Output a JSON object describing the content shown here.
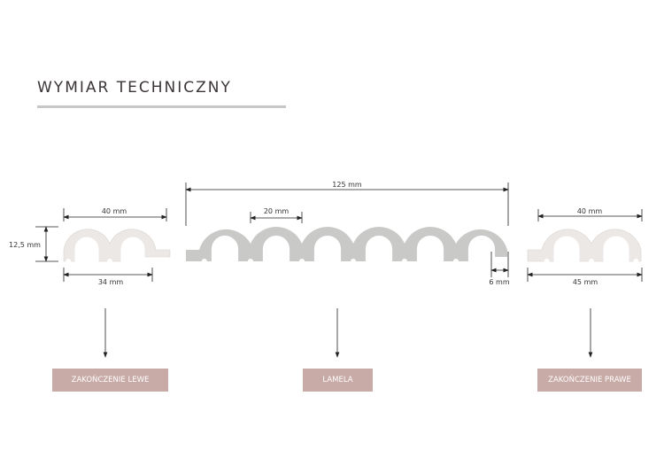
{
  "title": "WYMIAR TECHNICZNY",
  "dimensions": {
    "left_width_top": "40 mm",
    "left_height": "12,5 mm",
    "left_width_bottom": "34 mm",
    "lamela_total": "125 mm",
    "lamela_pitch": "20 mm",
    "lamela_offset": "6 mm",
    "right_width_top": "40 mm",
    "right_width_bottom": "45 mm"
  },
  "labels": {
    "left": "ZAKOŃCZENIE LEWE",
    "center": "LAMELA",
    "right": "ZAKOŃCZENIE PRAWE"
  },
  "colors": {
    "end_piece": "#ebe8e5",
    "lamela": "#c9cac8",
    "label_bg": "#c8aaa6",
    "text": "#3b3536"
  }
}
